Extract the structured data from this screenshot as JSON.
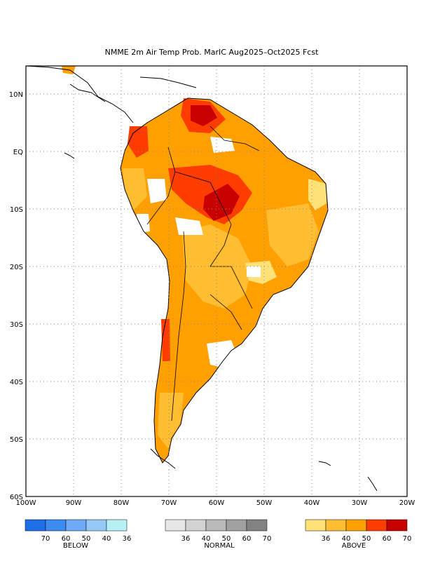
{
  "title": "NMME 2m Air Temp Prob. MarIC  Aug2025–Oct2025 Fcst",
  "map": {
    "lat_labels": [
      "10N",
      "EQ",
      "10S",
      "20S",
      "30S",
      "40S",
      "50S",
      "60S"
    ],
    "lon_labels": [
      "100W",
      "90W",
      "80W",
      "70W",
      "60W",
      "50W",
      "40W",
      "30W",
      "20W"
    ]
  },
  "legend": {
    "below": {
      "label": "BELOW",
      "ticks": [
        "70",
        "60",
        "50",
        "40",
        "36"
      ],
      "colors": [
        "#1e6fe6",
        "#3c8cf0",
        "#6eaaf5",
        "#96c8f5",
        "#b4f0f5"
      ]
    },
    "normal": {
      "label": "NORMAL",
      "ticks": [
        "36",
        "40",
        "50",
        "60",
        "70"
      ],
      "colors": [
        "#e6e6e6",
        "#d2d2d2",
        "#b9b9b9",
        "#a0a0a0",
        "#828282"
      ]
    },
    "above": {
      "label": "ABOVE",
      "ticks": [
        "36",
        "40",
        "50",
        "60",
        "70"
      ],
      "colors": [
        "#ffe178",
        "#ffbe32",
        "#ffa000",
        "#ff3c00",
        "#c80000"
      ]
    }
  }
}
